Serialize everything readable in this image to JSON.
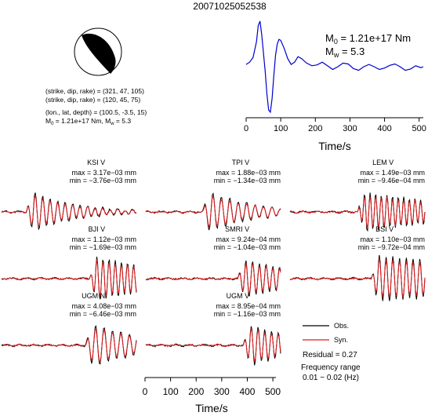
{
  "title": "20071025052538",
  "source": {
    "strike_dip_rake_1": "(strike, dip, rake) = (321, 47, 105)",
    "strike_dip_rake_2": "(strike, dip, rake) = (120, 45, 75)",
    "location": "(lon., lat, depth) = (100.5, -3.5, 15)",
    "moment_label": "M",
    "moment_sub": "0",
    "moment_value": " = 1.21e+17 Nm, M",
    "mw_sub": "w",
    "mw_value": " = 5.3"
  },
  "stf_panel": {
    "m0_label": "M",
    "m0_sub": "0",
    "m0_value": " = 1.21e+17 Nm",
    "mw_label": "M",
    "mw_sub": "w",
    "mw_value": " = 5.3"
  },
  "legend": {
    "obs": "Obs.",
    "syn": "Syn.",
    "residual": "Residual = 0.27",
    "freq_label": "Frequency range",
    "freq_value": "0.01 − 0.02 (Hz)"
  },
  "colors": {
    "obs": "#000000",
    "syn": "#e41a1c",
    "stf": "#0000cc"
  },
  "chart_data": [
    {
      "type": "line",
      "panel": "source-time-function",
      "xlabel": "Time/s",
      "xlim": [
        0,
        512
      ],
      "xticks": [
        0,
        100,
        200,
        300,
        400,
        500
      ],
      "series": [
        {
          "values_t": [
            0,
            10,
            20,
            30,
            35,
            40,
            45,
            55,
            60,
            65,
            70,
            75,
            80,
            85,
            90,
            95,
            100,
            110,
            120,
            130,
            140,
            150,
            160,
            175,
            190,
            205,
            220,
            235,
            250,
            265,
            280,
            295,
            310,
            325,
            340,
            355,
            370,
            385,
            400,
            415,
            430,
            445,
            460,
            475,
            490,
            505,
            512
          ],
          "values_a": [
            0.05,
            0.1,
            0.2,
            0.55,
            0.9,
            1.0,
            0.7,
            -0.1,
            -0.6,
            -0.95,
            -1.0,
            -0.7,
            -0.2,
            0.25,
            0.5,
            0.6,
            0.58,
            0.4,
            0.18,
            0.05,
            0.1,
            0.22,
            0.18,
            0.08,
            0.02,
            0.04,
            0.1,
            0.02,
            -0.06,
            0.0,
            0.08,
            0.06,
            -0.04,
            -0.08,
            0.0,
            0.05,
            0.0,
            -0.06,
            -0.03,
            0.03,
            0.06,
            0.0,
            -0.08,
            -0.05,
            0.02,
            -0.02,
            0.0
          ]
        }
      ]
    },
    {
      "type": "line",
      "panel": "waveforms",
      "xlabel": "Time/s",
      "xlim": [
        0,
        512
      ],
      "xticks": [
        0,
        100,
        200,
        300,
        400,
        500
      ],
      "stations": [
        {
          "name": "KSI V",
          "max": "max = 3.17e−03 mm",
          "min": "min = −3.76e−03 mm",
          "onset": 0.18,
          "amp": 1.0,
          "freq": 9,
          "decay": 3.2
        },
        {
          "name": "TPI V",
          "max": "max = 1.88e−03 mm",
          "min": "min = −1.34e−03 mm",
          "onset": 0.42,
          "amp": 1.0,
          "freq": 8,
          "decay": 3.0
        },
        {
          "name": "LEM V",
          "max": "max = 1.49e−03 mm",
          "min": "min = −9.46e−04 mm",
          "onset": 0.5,
          "amp": 0.9,
          "freq": 12,
          "decay": 1.2
        },
        {
          "name": "BJI V",
          "max": "max = 1.12e−03 mm",
          "min": "min = −1.69e−03 mm",
          "onset": 0.65,
          "amp": 1.0,
          "freq": 11,
          "decay": 1.4
        },
        {
          "name": "SMRI V",
          "max": "max = 9.24e−04 mm",
          "min": "min = −1.04e−03 mm",
          "onset": 0.68,
          "amp": 0.9,
          "freq": 10,
          "decay": 2.0
        },
        {
          "name": "BSI V",
          "max": "max = 1.10e−03 mm",
          "min": "min = −9.72e−04 mm",
          "onset": 0.6,
          "amp": 1.0,
          "freq": 10,
          "decay": 0.5
        },
        {
          "name": "UGM N",
          "max": "max = 4.08e−03 mm",
          "min": "min = −6.46e−03 mm",
          "onset": 0.62,
          "amp": 1.0,
          "freq": 8,
          "decay": 2.2
        },
        {
          "name": "UGM V",
          "max": "max = 8.95e−04 mm",
          "min": "min = −1.16e−03 mm",
          "onset": 0.72,
          "amp": 1.0,
          "freq": 10,
          "decay": 2.4
        }
      ]
    }
  ]
}
